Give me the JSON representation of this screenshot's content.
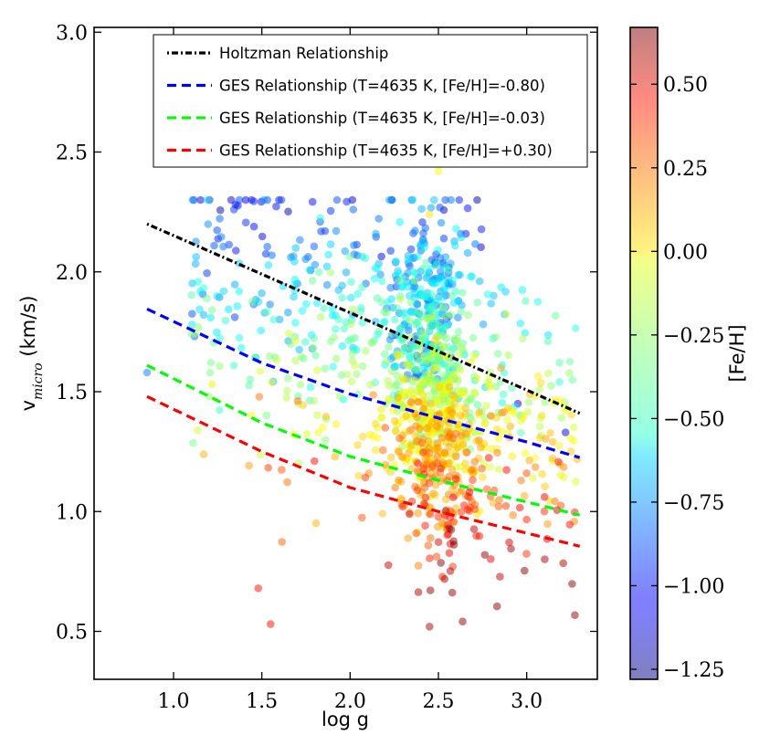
{
  "chart_data": {
    "type": "scatter",
    "xlabel": "log g",
    "ylabel_main": "v",
    "ylabel_sub": "micro",
    "ylabel_unit": " (km/s)",
    "xlim": [
      0.55,
      3.4
    ],
    "ylim": [
      0.3,
      3.02
    ],
    "xticks": [
      "1.0",
      "1.5",
      "2.0",
      "2.5",
      "3.0"
    ],
    "yticks": [
      "0.5",
      "1.0",
      "1.5",
      "2.0",
      "2.5",
      "3.0"
    ],
    "legend_position": "top-right",
    "lines": [
      {
        "name": "Holtzman Relationship",
        "color": "#000000",
        "style": "dashdot",
        "x": [
          0.85,
          3.3
        ],
        "y": [
          2.2,
          1.41
        ]
      },
      {
        "name": "GES Relationship (T=4635 K, [Fe/H]=-0.80)",
        "color": "#0000ff",
        "style": "dashed",
        "x": [
          0.85,
          1.5,
          2.0,
          2.5,
          3.0,
          3.3
        ],
        "y": [
          1.845,
          1.62,
          1.49,
          1.39,
          1.29,
          1.225
        ]
      },
      {
        "name": "GES Relationship (T=4635 K, [Fe/H]=-0.03)",
        "color": "#00ff00",
        "style": "dashed",
        "x": [
          0.85,
          1.5,
          2.0,
          2.5,
          3.0,
          3.3
        ],
        "y": [
          1.61,
          1.37,
          1.23,
          1.13,
          1.04,
          0.985
        ]
      },
      {
        "name": "GES Relationship (T=4635 K, [Fe/H]=+0.30)",
        "color": "#ff0000",
        "style": "dashed",
        "x": [
          0.85,
          1.5,
          2.0,
          2.5,
          3.0,
          3.3
        ],
        "y": [
          1.48,
          1.25,
          1.1,
          1.0,
          0.91,
          0.855
        ]
      }
    ],
    "scatter": {
      "n_points": 1400,
      "color_by": "[Fe/H]",
      "sample_points": [
        {
          "x": 0.85,
          "y": 1.58,
          "feh": -0.8
        },
        {
          "x": 1.62,
          "y": 1.94,
          "feh": -0.6
        },
        {
          "x": 2.5,
          "y": 2.42,
          "feh": -0.05
        },
        {
          "x": 2.45,
          "y": 2.24,
          "feh": 0.0
        },
        {
          "x": 2.6,
          "y": 2.18,
          "feh": -0.55
        },
        {
          "x": 2.38,
          "y": 1.57,
          "feh": -1.0
        },
        {
          "x": 2.38,
          "y": 1.65,
          "feh": -1.1
        },
        {
          "x": 2.95,
          "y": 1.45,
          "feh": -1.1
        },
        {
          "x": 3.22,
          "y": 1.33,
          "feh": -1.1
        },
        {
          "x": 2.45,
          "y": 0.52,
          "feh": 0.6
        },
        {
          "x": 1.55,
          "y": 0.53,
          "feh": 0.4
        },
        {
          "x": 1.48,
          "y": 0.68,
          "feh": 0.4
        }
      ]
    },
    "colorbar": {
      "label": "[Fe/H]",
      "min": -1.28,
      "max": 0.67,
      "ticks": [
        "0.50",
        "0.25",
        "0.00",
        "−0.25",
        "−0.50",
        "−0.75",
        "−1.00",
        "−1.25"
      ],
      "tick_values": [
        0.5,
        0.25,
        0.0,
        -0.25,
        -0.5,
        -0.75,
        -1.0,
        -1.25
      ]
    }
  }
}
